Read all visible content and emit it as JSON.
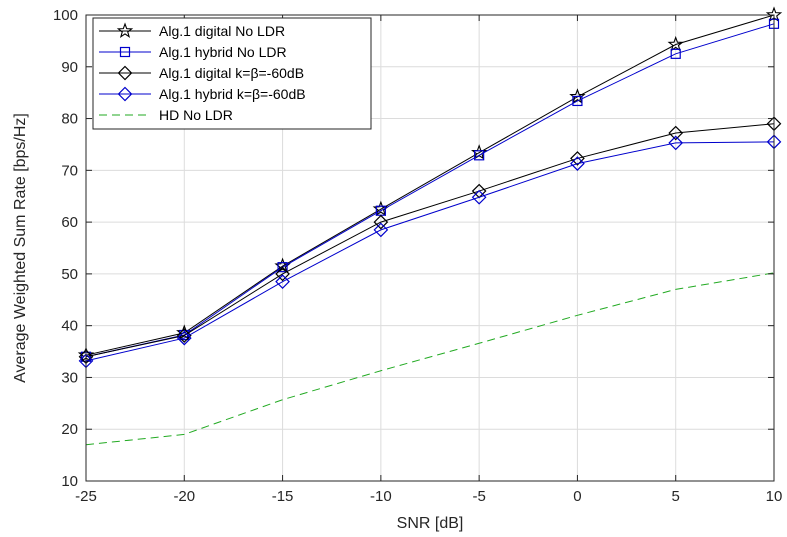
{
  "chart_data": {
    "type": "line",
    "xlabel": "SNR [dB]",
    "ylabel": "Average Weighted Sum Rate [bps/Hz]",
    "xlim": [
      -25,
      10
    ],
    "ylim": [
      10,
      100
    ],
    "xticks": [
      -25,
      -20,
      -15,
      -10,
      -5,
      0,
      5,
      10
    ],
    "yticks": [
      10,
      20,
      30,
      40,
      50,
      60,
      70,
      80,
      90,
      100
    ],
    "grid": true,
    "legend_position": "top-left",
    "x": [
      -25,
      -20,
      -15,
      -10,
      -5,
      0,
      5,
      10
    ],
    "series": [
      {
        "name": "Alg.1 digital No LDR",
        "color": "#000000",
        "marker": "star",
        "dash": "solid",
        "values": [
          34.3,
          38.6,
          51.5,
          62.5,
          73.4,
          84.2,
          94.3,
          100
        ]
      },
      {
        "name": "Alg.1 hybrid No LDR",
        "color": "#0000cc",
        "marker": "square",
        "dash": "solid",
        "values": [
          34.0,
          38.2,
          51.3,
          62.2,
          72.9,
          83.4,
          92.5,
          98.3
        ]
      },
      {
        "name": "Alg.1 digital k=β=-60dB",
        "color": "#000000",
        "marker": "diamond",
        "dash": "solid",
        "values": [
          34.0,
          38.1,
          50.0,
          60.0,
          66.0,
          72.3,
          77.2,
          79.0
        ]
      },
      {
        "name": "Alg.1 hybrid k=β=-60dB",
        "color": "#0000cc",
        "marker": "diamond",
        "dash": "solid",
        "values": [
          33.2,
          37.6,
          48.5,
          58.5,
          64.8,
          71.3,
          75.3,
          75.5
        ]
      },
      {
        "name": "HD No LDR",
        "color": "#22aa22",
        "marker": "none",
        "dash": "dashed",
        "values": [
          17.0,
          19.0,
          25.7,
          31.3,
          36.6,
          42.0,
          47.0,
          50.2
        ]
      }
    ]
  }
}
